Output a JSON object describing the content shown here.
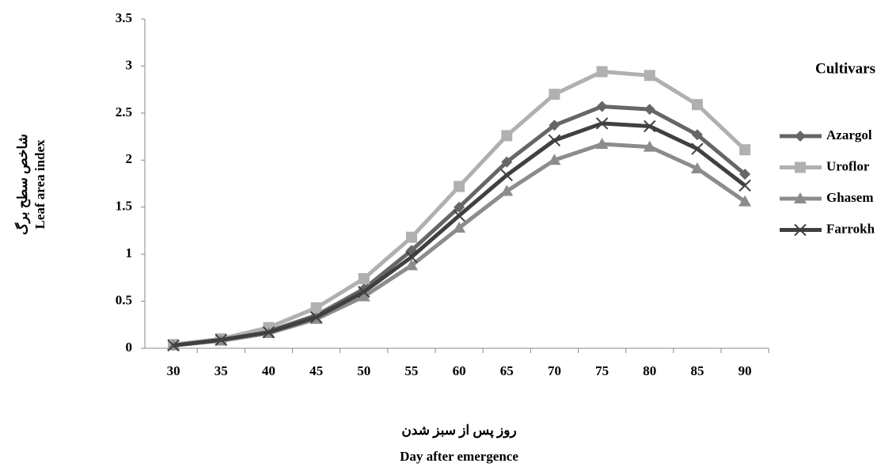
{
  "chart_data": {
    "type": "line",
    "y_title_fa": "شاخص سطح برگ",
    "y_title": "Leaf area index",
    "x_title_fa": "روز پس از سبز شدن",
    "x_title": "Day after emergence",
    "legend_title": "Cultivars",
    "legend": "right",
    "categories": [
      "30",
      "35",
      "40",
      "45",
      "50",
      "55",
      "60",
      "65",
      "70",
      "75",
      "80",
      "85",
      "90"
    ],
    "ylim": [
      0,
      3.5
    ],
    "yticks": [
      0,
      0.5,
      1,
      1.5,
      2,
      2.5,
      3,
      3.5
    ],
    "grid": false,
    "series": [
      {
        "name": "Azargol",
        "color": "#666666",
        "marker": "diamond",
        "values": [
          0.03,
          0.09,
          0.18,
          0.35,
          0.63,
          1.04,
          1.5,
          1.98,
          2.37,
          2.57,
          2.54,
          2.27,
          1.85
        ]
      },
      {
        "name": "Uroflor",
        "color": "#b0b0b0",
        "marker": "square",
        "values": [
          0.04,
          0.1,
          0.22,
          0.43,
          0.74,
          1.18,
          1.72,
          2.26,
          2.7,
          2.94,
          2.9,
          2.59,
          2.11
        ]
      },
      {
        "name": "Ghasem",
        "color": "#8c8c8c",
        "marker": "triangle",
        "values": [
          0.03,
          0.08,
          0.16,
          0.31,
          0.55,
          0.88,
          1.28,
          1.67,
          2.0,
          2.17,
          2.14,
          1.91,
          1.56
        ]
      },
      {
        "name": "Farrokh",
        "color": "#404040",
        "marker": "x",
        "values": [
          0.03,
          0.09,
          0.17,
          0.33,
          0.6,
          0.97,
          1.41,
          1.84,
          2.21,
          2.39,
          2.36,
          2.12,
          1.73
        ]
      }
    ]
  }
}
